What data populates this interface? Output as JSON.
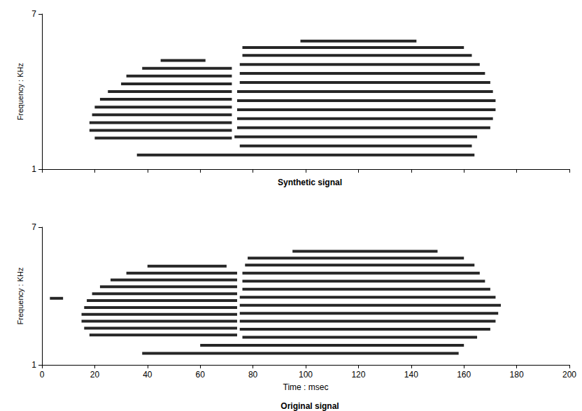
{
  "chart_data": [
    {
      "type": "line",
      "title": "Synthetic signal",
      "y_label": "Frequency : KHz",
      "xlim": [
        0,
        200
      ],
      "xticks": [
        0,
        20,
        40,
        60,
        80,
        100,
        120,
        140,
        160,
        180,
        200
      ],
      "ylim": [
        1,
        7
      ],
      "yticks": [
        1,
        7
      ],
      "tick_labels": "y",
      "grid": false,
      "color": "#000000",
      "series": [
        {
          "x": [
            20,
            72
          ],
          "values": [
            2.2,
            2.2
          ]
        },
        {
          "x": [
            18,
            72
          ],
          "values": [
            2.5,
            2.5
          ]
        },
        {
          "x": [
            18,
            72
          ],
          "values": [
            2.8,
            2.8
          ]
        },
        {
          "x": [
            19,
            72
          ],
          "values": [
            3.1,
            3.1
          ]
        },
        {
          "x": [
            20,
            72
          ],
          "values": [
            3.4,
            3.4
          ]
        },
        {
          "x": [
            22,
            72
          ],
          "values": [
            3.7,
            3.7
          ]
        },
        {
          "x": [
            25,
            72
          ],
          "values": [
            4.0,
            4.0
          ]
        },
        {
          "x": [
            30,
            72
          ],
          "values": [
            4.3,
            4.3
          ]
        },
        {
          "x": [
            32,
            72
          ],
          "values": [
            4.6,
            4.6
          ]
        },
        {
          "x": [
            38,
            72
          ],
          "values": [
            4.9,
            4.9
          ]
        },
        {
          "x": [
            45,
            62
          ],
          "values": [
            5.2,
            5.2
          ]
        },
        {
          "x": [
            36,
            164
          ],
          "values": [
            1.55,
            1.55
          ]
        },
        {
          "x": [
            75,
            163
          ],
          "values": [
            1.9,
            1.9
          ]
        },
        {
          "x": [
            73,
            165
          ],
          "values": [
            2.25,
            2.25
          ]
        },
        {
          "x": [
            74,
            170
          ],
          "values": [
            2.6,
            2.6
          ]
        },
        {
          "x": [
            74,
            171
          ],
          "values": [
            2.95,
            2.95
          ]
        },
        {
          "x": [
            74,
            172
          ],
          "values": [
            3.3,
            3.3
          ]
        },
        {
          "x": [
            74,
            172
          ],
          "values": [
            3.65,
            3.65
          ]
        },
        {
          "x": [
            74,
            171
          ],
          "values": [
            4.0,
            4.0
          ]
        },
        {
          "x": [
            75,
            170
          ],
          "values": [
            4.35,
            4.35
          ]
        },
        {
          "x": [
            75,
            168
          ],
          "values": [
            4.7,
            4.7
          ]
        },
        {
          "x": [
            75,
            166
          ],
          "values": [
            5.05,
            5.05
          ]
        },
        {
          "x": [
            76,
            163
          ],
          "values": [
            5.4,
            5.4
          ]
        },
        {
          "x": [
            76,
            160
          ],
          "values": [
            5.7,
            5.7
          ]
        },
        {
          "x": [
            98,
            142
          ],
          "values": [
            5.95,
            5.95
          ]
        }
      ]
    },
    {
      "type": "line",
      "title": "Original signal",
      "x_label": "Time : msec",
      "y_label": "Frequency : KHz",
      "xlim": [
        0,
        200
      ],
      "xticks": [
        0,
        20,
        40,
        60,
        80,
        100,
        120,
        140,
        160,
        180,
        200
      ],
      "ylim": [
        1,
        7
      ],
      "yticks": [
        1,
        7
      ],
      "grid": false,
      "color": "#000000",
      "series": [
        {
          "x": [
            3,
            8
          ],
          "values": [
            3.9,
            3.9
          ]
        },
        {
          "x": [
            18,
            74
          ],
          "values": [
            2.3,
            2.3
          ]
        },
        {
          "x": [
            16,
            74
          ],
          "values": [
            2.6,
            2.6
          ]
        },
        {
          "x": [
            15,
            74
          ],
          "values": [
            2.9,
            2.9
          ]
        },
        {
          "x": [
            15,
            74
          ],
          "values": [
            3.2,
            3.2
          ]
        },
        {
          "x": [
            16,
            74
          ],
          "values": [
            3.5,
            3.5
          ]
        },
        {
          "x": [
            17,
            74
          ],
          "values": [
            3.8,
            3.8
          ]
        },
        {
          "x": [
            19,
            74
          ],
          "values": [
            4.1,
            4.1
          ]
        },
        {
          "x": [
            22,
            74
          ],
          "values": [
            4.4,
            4.4
          ]
        },
        {
          "x": [
            26,
            74
          ],
          "values": [
            4.7,
            4.7
          ]
        },
        {
          "x": [
            32,
            74
          ],
          "values": [
            5.0,
            5.0
          ]
        },
        {
          "x": [
            40,
            70
          ],
          "values": [
            5.3,
            5.3
          ]
        },
        {
          "x": [
            38,
            158
          ],
          "values": [
            1.5,
            1.5
          ]
        },
        {
          "x": [
            60,
            160
          ],
          "values": [
            1.85,
            1.85
          ]
        },
        {
          "x": [
            76,
            165
          ],
          "values": [
            2.2,
            2.2
          ]
        },
        {
          "x": [
            75,
            170
          ],
          "values": [
            2.55,
            2.55
          ]
        },
        {
          "x": [
            75,
            172
          ],
          "values": [
            2.9,
            2.9
          ]
        },
        {
          "x": [
            75,
            173
          ],
          "values": [
            3.25,
            3.25
          ]
        },
        {
          "x": [
            75,
            174
          ],
          "values": [
            3.6,
            3.6
          ]
        },
        {
          "x": [
            75,
            172
          ],
          "values": [
            3.95,
            3.95
          ]
        },
        {
          "x": [
            76,
            170
          ],
          "values": [
            4.3,
            4.3
          ]
        },
        {
          "x": [
            76,
            168
          ],
          "values": [
            4.65,
            4.65
          ]
        },
        {
          "x": [
            76,
            166
          ],
          "values": [
            5.0,
            5.0
          ]
        },
        {
          "x": [
            77,
            164
          ],
          "values": [
            5.35,
            5.35
          ]
        },
        {
          "x": [
            78,
            160
          ],
          "values": [
            5.65,
            5.65
          ]
        },
        {
          "x": [
            95,
            150
          ],
          "values": [
            5.95,
            5.95
          ]
        }
      ]
    }
  ]
}
